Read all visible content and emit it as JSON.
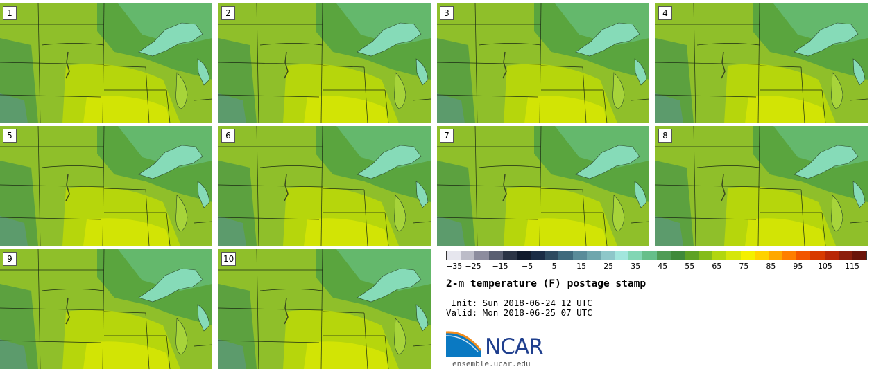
{
  "panels": [
    {
      "label": "1"
    },
    {
      "label": "2"
    },
    {
      "label": "3"
    },
    {
      "label": "4"
    },
    {
      "label": "5"
    },
    {
      "label": "6"
    },
    {
      "label": "7"
    },
    {
      "label": "8"
    },
    {
      "label": "9"
    },
    {
      "label": "10"
    }
  ],
  "colorbar": {
    "colors": [
      "#e6e6ee",
      "#bcbcc8",
      "#8c8c9e",
      "#5a5f72",
      "#2b3446",
      "#101a2c",
      "#1a2c45",
      "#2d4a60",
      "#3f6a7d",
      "#5a8c9a",
      "#6fa6ad",
      "#8ec7c9",
      "#a2e6dd",
      "#82d6b4",
      "#66bf8a",
      "#4f9c55",
      "#3f8a3a",
      "#5ea224",
      "#84bc1a",
      "#b1d60f",
      "#d5e60a",
      "#f4f000",
      "#ffd200",
      "#ffa800",
      "#ff7e00",
      "#f25500",
      "#d83a00",
      "#b82606",
      "#8c1e0c",
      "#6a140a"
    ],
    "ticks": [
      "−35",
      "−25",
      "−15",
      "−5",
      "5",
      "15",
      "25",
      "35",
      "45",
      "55",
      "65",
      "75",
      "85",
      "95",
      "105",
      "115"
    ],
    "min": -35,
    "max": 120
  },
  "title": "2-m temperature (F) postage stamp",
  "init_line": " Init: Sun 2018-06-24 12 UTC",
  "valid_line": "Valid: Mon 2018-06-25 07 UTC",
  "logo": {
    "name": "NCAR",
    "url": "ensemble.ucar.edu"
  }
}
